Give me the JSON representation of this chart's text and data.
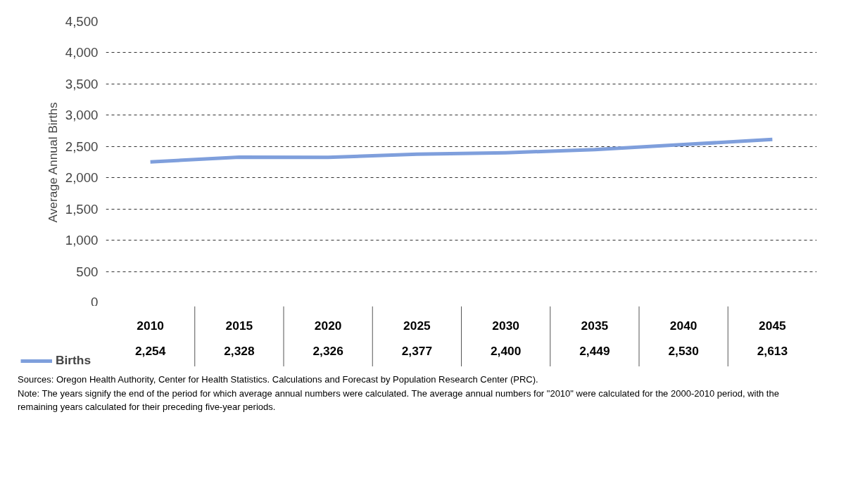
{
  "chart_data": {
    "type": "line",
    "ylabel": "Average Annual Births",
    "categories": [
      "2010",
      "2015",
      "2020",
      "2025",
      "2030",
      "2035",
      "2040",
      "2045"
    ],
    "series": [
      {
        "name": "Births",
        "color": "#7f9fdc",
        "values": [
          2254,
          2328,
          2326,
          2377,
          2400,
          2449,
          2530,
          2613
        ],
        "value_labels": [
          "2,254",
          "2,328",
          "2,326",
          "2,377",
          "2,400",
          "2,449",
          "2,530",
          "2,613"
        ]
      }
    ],
    "ylim": [
      0,
      4500
    ],
    "yticks": [
      0,
      500,
      {
        "value": 1000,
        "label": "1,000"
      },
      {
        "value": 1500,
        "label": "1,500"
      },
      {
        "value": 2000,
        "label": "2,000"
      },
      {
        "value": 2500,
        "label": "2,500"
      },
      {
        "value": 3000,
        "label": "3,000"
      },
      {
        "value": 3500,
        "label": "3,500"
      },
      {
        "value": 4000,
        "label": "4,000"
      },
      {
        "value": 4500,
        "label": "4,500"
      }
    ],
    "grid": "y",
    "legend": "bottom left",
    "annotations": [
      "Sources: Oregon Health Authority, Center for Health Statistics. Calculations and Forecast by Population Research Center (PRC).",
      "Note: The years signify the end of the period for which average annual numbers were calculated. The average annual numbers for \"2010\" were calculated for the 2000-2010 period, with the remaining years calculated for their preceding five-year periods."
    ]
  }
}
